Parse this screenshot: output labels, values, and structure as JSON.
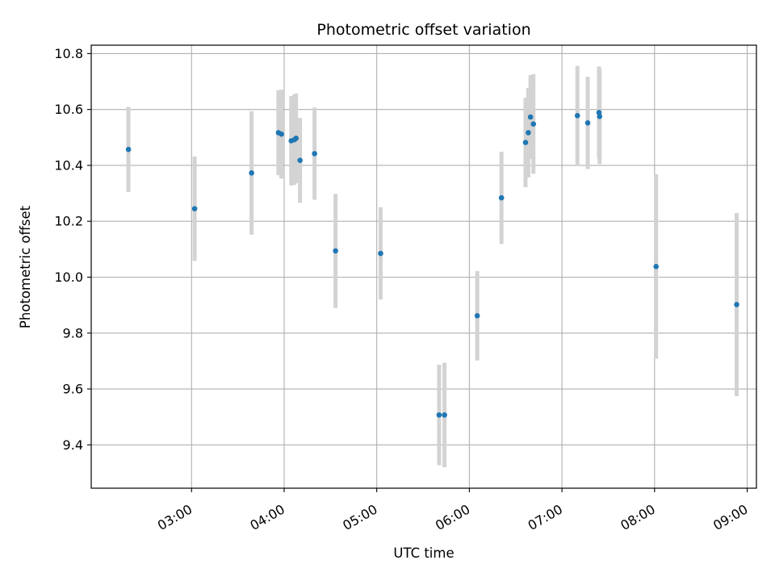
{
  "chart_data": {
    "type": "scatter",
    "title": "Photometric offset variation",
    "xlabel": "UTC time",
    "ylabel": "Photometric offset",
    "x_ticks": [
      "03:00",
      "04:00",
      "05:00",
      "06:00",
      "07:00",
      "08:00",
      "09:00"
    ],
    "x_tick_minutes": [
      180,
      240,
      300,
      360,
      420,
      480,
      540
    ],
    "xlim_minutes": [
      115,
      546
    ],
    "ylim": [
      9.245,
      10.83
    ],
    "y_ticks": [
      "9.4",
      "9.6",
      "9.8",
      "10.0",
      "10.2",
      "10.4",
      "10.6",
      "10.8"
    ],
    "y_tick_values": [
      9.4,
      9.6,
      9.8,
      10.0,
      10.2,
      10.4,
      10.6,
      10.8
    ],
    "grid": true,
    "point_color": "#1f77b4",
    "errorbar_color": "#d3d3d3",
    "points": [
      {
        "t": 139.1,
        "y": 10.457,
        "err": 0.152
      },
      {
        "t": 182.0,
        "y": 10.245,
        "err": 0.187
      },
      {
        "t": 218.9,
        "y": 10.373,
        "err": 0.221
      },
      {
        "t": 236.3,
        "y": 10.517,
        "err": 0.152
      },
      {
        "t": 238.2,
        "y": 10.512,
        "err": 0.159
      },
      {
        "t": 244.6,
        "y": 10.488,
        "err": 0.16
      },
      {
        "t": 246.7,
        "y": 10.492,
        "err": 0.162
      },
      {
        "t": 247.7,
        "y": 10.497,
        "err": 0.16
      },
      {
        "t": 250.3,
        "y": 10.418,
        "err": 0.152
      },
      {
        "t": 259.7,
        "y": 10.442,
        "err": 0.165
      },
      {
        "t": 273.3,
        "y": 10.094,
        "err": 0.204
      },
      {
        "t": 302.5,
        "y": 10.085,
        "err": 0.165
      },
      {
        "t": 340.4,
        "y": 9.507,
        "err": 0.18
      },
      {
        "t": 343.9,
        "y": 9.507,
        "err": 0.187
      },
      {
        "t": 365.1,
        "y": 9.862,
        "err": 0.16
      },
      {
        "t": 380.8,
        "y": 10.284,
        "err": 0.165
      },
      {
        "t": 396.4,
        "y": 10.482,
        "err": 0.16
      },
      {
        "t": 398.2,
        "y": 10.517,
        "err": 0.16
      },
      {
        "t": 399.6,
        "y": 10.573,
        "err": 0.15
      },
      {
        "t": 401.5,
        "y": 10.548,
        "err": 0.178
      },
      {
        "t": 430.0,
        "y": 10.578,
        "err": 0.178
      },
      {
        "t": 436.7,
        "y": 10.552,
        "err": 0.165
      },
      {
        "t": 444.0,
        "y": 10.589,
        "err": 0.165
      },
      {
        "t": 444.4,
        "y": 10.575,
        "err": 0.17
      },
      {
        "t": 481.0,
        "y": 10.038,
        "err": 0.33
      },
      {
        "t": 533.2,
        "y": 9.902,
        "err": 0.328
      }
    ]
  }
}
